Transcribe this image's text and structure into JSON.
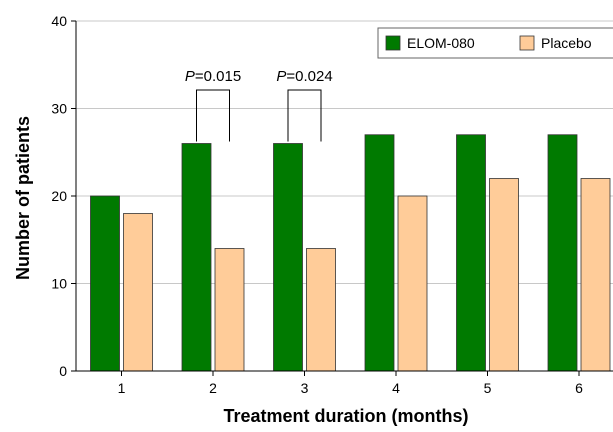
{
  "chart_data": {
    "type": "bar",
    "xlabel": "Treatment duration (months)",
    "ylabel": "Number of patients",
    "ylim": [
      0,
      40
    ],
    "yticks": [
      0,
      10,
      20,
      30,
      40
    ],
    "grid": true,
    "legend_position": "top-right",
    "categories": [
      "1",
      "2",
      "3",
      "4",
      "5",
      "6"
    ],
    "series": [
      {
        "name": "ELOM-080",
        "color": "#007a00",
        "values": [
          20,
          26,
          26,
          27,
          27,
          27
        ]
      },
      {
        "name": "Placebo",
        "color": "#ffcc99",
        "values": [
          18,
          14,
          14,
          20,
          22,
          22
        ]
      }
    ],
    "annotations": [
      {
        "category_index": 1,
        "prefix": "P",
        "text": "=0.015"
      },
      {
        "category_index": 2,
        "prefix": "P",
        "text": "=0.024"
      }
    ]
  }
}
